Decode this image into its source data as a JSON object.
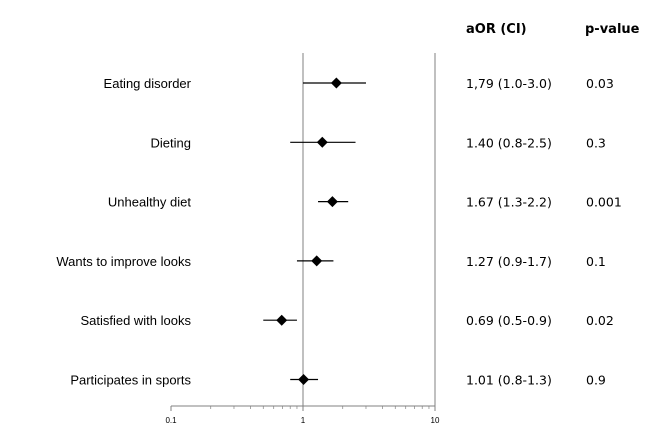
{
  "chart_data": {
    "type": "forest",
    "x_scale": "log",
    "xlim": [
      0.1,
      10
    ],
    "x_ticks": [
      "0.1",
      "1",
      "10"
    ],
    "reference_line": 1,
    "columns": {
      "estimate_header": "aOR (CI)",
      "pvalue_header": "p-value"
    },
    "rows": [
      {
        "label": "Eating disorder",
        "aor": 1.79,
        "ci": [
          1.0,
          3.0
        ],
        "estimate_text": "1,79 (1.0-3.0)",
        "p_value": "0.03"
      },
      {
        "label": "Dieting",
        "aor": 1.4,
        "ci": [
          0.8,
          2.5
        ],
        "estimate_text": "1.40 (0.8-2.5)",
        "p_value": "0.3"
      },
      {
        "label": "Unhealthy diet",
        "aor": 1.67,
        "ci": [
          1.3,
          2.2
        ],
        "estimate_text": "1.67 (1.3-2.2)",
        "p_value": "0.001"
      },
      {
        "label": "Wants to improve looks",
        "aor": 1.27,
        "ci": [
          0.9,
          1.7
        ],
        "estimate_text": "1.27 (0.9-1.7)",
        "p_value": "0.1"
      },
      {
        "label": "Satisfied with looks",
        "aor": 0.69,
        "ci": [
          0.5,
          0.9
        ],
        "estimate_text": "0.69 (0.5-0.9)",
        "p_value": "0.02"
      },
      {
        "label": "Participates in sports",
        "aor": 1.01,
        "ci": [
          0.8,
          1.3
        ],
        "estimate_text": "1.01 (0.8-1.3)",
        "p_value": "0.9"
      }
    ]
  }
}
